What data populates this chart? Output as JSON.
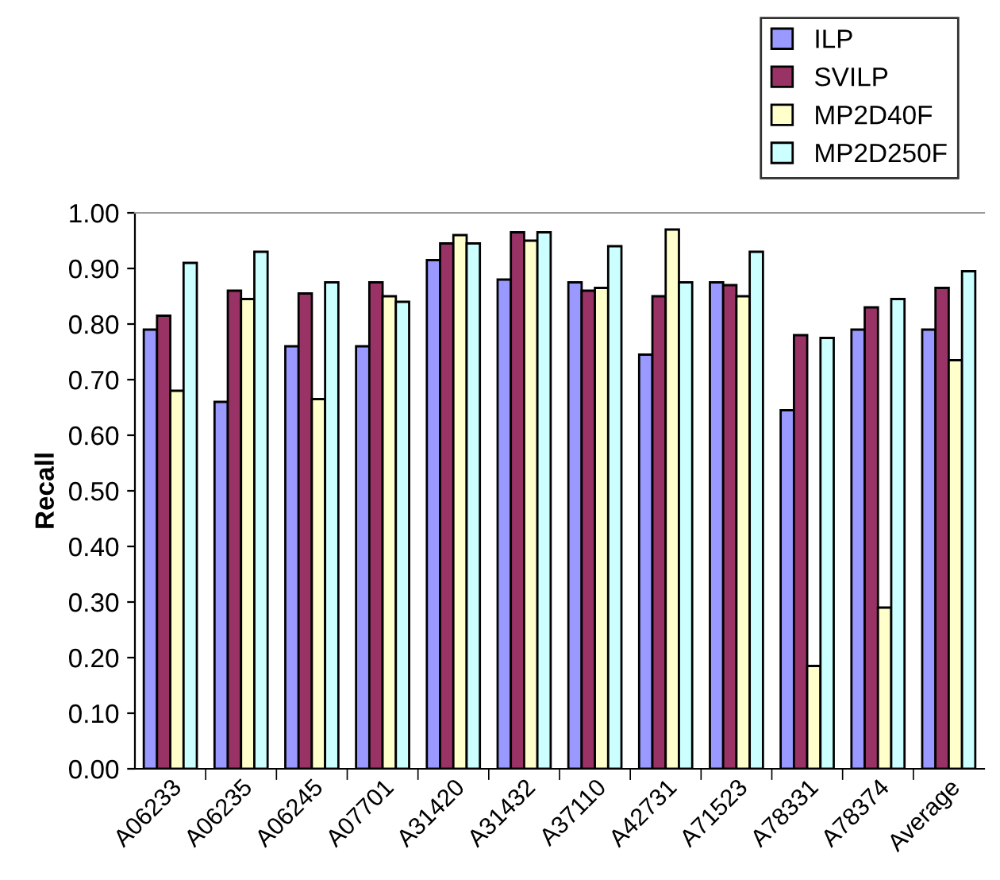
{
  "chart_data": {
    "type": "bar",
    "ylabel": "Recall",
    "categories": [
      "A06233",
      "A06235",
      "A06245",
      "A07701",
      "A31420",
      "A31432",
      "A37110",
      "A42731",
      "A71523",
      "A78331",
      "A78374",
      "Average"
    ],
    "series": [
      {
        "name": "ILP",
        "color": "#9999ff",
        "values": [
          0.79,
          0.66,
          0.76,
          0.76,
          0.915,
          0.88,
          0.875,
          0.745,
          0.875,
          0.645,
          0.79,
          0.79
        ]
      },
      {
        "name": "SVILP",
        "color": "#993366",
        "values": [
          0.815,
          0.86,
          0.855,
          0.875,
          0.945,
          0.965,
          0.86,
          0.85,
          0.87,
          0.78,
          0.83,
          0.865
        ]
      },
      {
        "name": "MP2D40F",
        "color": "#ffffcc",
        "values": [
          0.68,
          0.845,
          0.665,
          0.85,
          0.96,
          0.95,
          0.865,
          0.97,
          0.85,
          0.185,
          0.29,
          0.735
        ]
      },
      {
        "name": "MP2D250F",
        "color": "#ccffff",
        "values": [
          0.91,
          0.93,
          0.875,
          0.84,
          0.945,
          0.965,
          0.94,
          0.875,
          0.93,
          0.775,
          0.845,
          0.895
        ]
      }
    ],
    "ylim": [
      0,
      1
    ],
    "yticks": [
      {
        "value": 0,
        "label": "0.00"
      },
      {
        "value": 0.1,
        "label": "0.10"
      },
      {
        "value": 0.2,
        "label": "0.20"
      },
      {
        "value": 0.3,
        "label": "0.30"
      },
      {
        "value": 0.4,
        "label": "0.40"
      },
      {
        "value": 0.5,
        "label": "0.50"
      },
      {
        "value": 0.6,
        "label": "0.60"
      },
      {
        "value": 0.7,
        "label": "0.70"
      },
      {
        "value": 0.8,
        "label": "0.80"
      },
      {
        "value": 0.9,
        "label": "0.90"
      },
      {
        "value": 1,
        "label": "1.00"
      }
    ],
    "grid": false,
    "legend": "top right"
  }
}
